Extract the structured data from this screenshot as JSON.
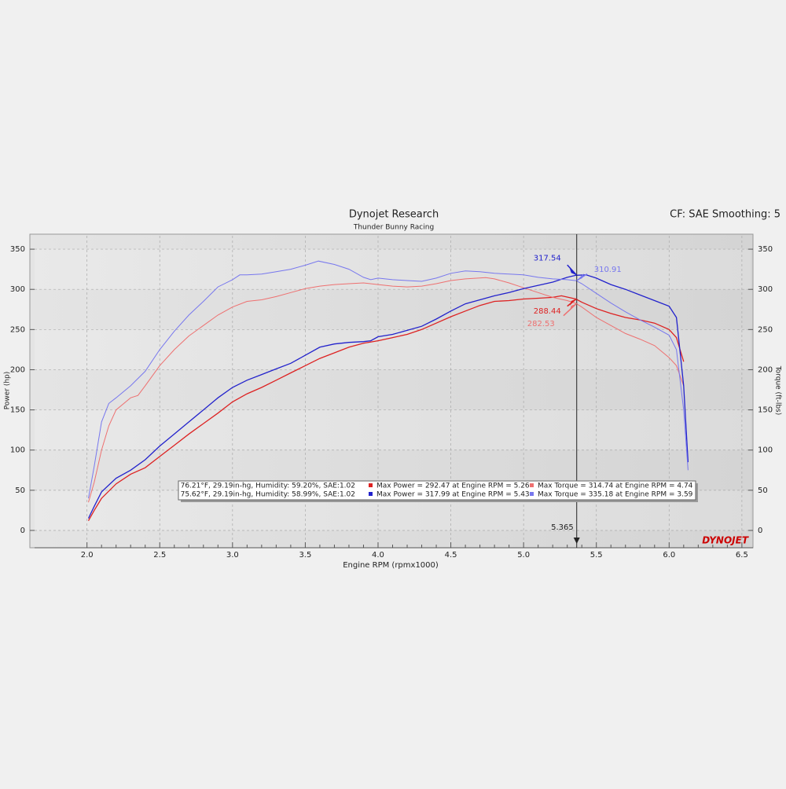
{
  "chart_data": {
    "type": "line",
    "title": "Dynojet Research",
    "subtitle": "Thunder Bunny Racing",
    "corner_text": "CF: SAE Smoothing: 5",
    "xlabel": "Engine RPM (rpmx1000)",
    "ylabel": "Power (hp)",
    "y2label": "Torque (ft-lbs)",
    "logo": "DYNOJET",
    "xlim": [
      1.64,
      6.56
    ],
    "xticks": [
      {
        "value": 2,
        "label": "2.0"
      },
      2.5,
      {
        "value": 3,
        "label": "3.0"
      },
      3.5,
      {
        "value": 4,
        "label": "4.0"
      },
      4.5,
      {
        "value": 5,
        "label": "5.0"
      },
      5.5,
      {
        "value": 6,
        "label": "6.0"
      },
      6.5
    ],
    "ylim": [
      -14.7,
      366.7
    ],
    "yticks": [
      0,
      50,
      100,
      150,
      200,
      250,
      300,
      350
    ],
    "y2lim": [
      -14.7,
      366.7
    ],
    "y2ticks": [
      0,
      50,
      100,
      150,
      200,
      250,
      300,
      350
    ],
    "grid": true,
    "cursor_x": 5.365,
    "cursor_readouts": [
      {
        "value": 317.54,
        "color": "#2222cc"
      },
      {
        "value": 310.91,
        "color": "#7777ee"
      },
      {
        "value": 288.44,
        "color": "#dd2222"
      },
      {
        "value": 282.53,
        "color": "#ee7070"
      }
    ],
    "runs": [
      {
        "conditions": "76.21°F, 29.19in-hg, Humidity: 59.20%, SAE:1.02"
      },
      {
        "conditions": "75.62°F, 29.19in-hg, Humidity: 58.99%, SAE:1.02"
      }
    ],
    "series": [
      {
        "name": "Max Power = 292.47 at Engine RPM = 5.26",
        "color": "#dd2222",
        "run": 0,
        "x": [
          2.01,
          2.05,
          2.1,
          2.2,
          2.3,
          2.4,
          2.5,
          2.6,
          2.7,
          2.8,
          2.9,
          3.0,
          3.1,
          3.2,
          3.3,
          3.4,
          3.5,
          3.6,
          3.7,
          3.8,
          3.9,
          4.0,
          4.1,
          4.2,
          4.3,
          4.4,
          4.5,
          4.6,
          4.7,
          4.8,
          4.9,
          5.0,
          5.1,
          5.2,
          5.26,
          5.36,
          5.4,
          5.5,
          5.6,
          5.7,
          5.8,
          5.9,
          6.0,
          6.05,
          6.1
        ],
        "values": [
          12,
          25,
          40,
          58,
          70,
          78,
          92,
          106,
          120,
          133,
          146,
          160,
          170,
          178,
          187,
          196,
          205,
          214,
          221,
          228,
          233,
          236,
          240,
          244,
          250,
          258,
          266,
          273,
          280,
          285,
          286,
          288,
          289,
          290,
          292,
          288,
          284,
          276,
          270,
          265,
          262,
          258,
          250,
          240,
          210
        ]
      },
      {
        "name": "Max Torque = 314.74 at Engine RPM = 4.74",
        "color": "#ee7070",
        "run": 0,
        "axis": "y2",
        "x": [
          2.01,
          2.05,
          2.1,
          2.15,
          2.2,
          2.3,
          2.35,
          2.4,
          2.5,
          2.6,
          2.7,
          2.8,
          2.9,
          3.0,
          3.1,
          3.2,
          3.3,
          3.4,
          3.5,
          3.6,
          3.7,
          3.8,
          3.9,
          4.0,
          4.1,
          4.2,
          4.3,
          4.4,
          4.5,
          4.6,
          4.74,
          4.8,
          4.9,
          5.0,
          5.1,
          5.2,
          5.3,
          5.36,
          5.4,
          5.5,
          5.6,
          5.7,
          5.8,
          5.9,
          6.0,
          6.05,
          6.1
        ],
        "values": [
          35,
          60,
          100,
          130,
          150,
          165,
          168,
          180,
          205,
          225,
          242,
          255,
          268,
          278,
          285,
          287,
          291,
          296,
          301,
          304,
          306,
          307,
          308,
          306,
          304,
          303,
          304,
          307,
          311,
          313,
          314.7,
          313,
          308,
          302,
          296,
          290,
          286,
          282.5,
          278,
          265,
          255,
          245,
          238,
          230,
          215,
          205,
          180
        ]
      },
      {
        "name": "Max Power = 317.99 at Engine RPM = 5.43",
        "color": "#2222cc",
        "run": 1,
        "x": [
          2.01,
          2.05,
          2.1,
          2.2,
          2.3,
          2.4,
          2.5,
          2.6,
          2.7,
          2.8,
          2.9,
          3.0,
          3.1,
          3.2,
          3.3,
          3.4,
          3.5,
          3.6,
          3.7,
          3.8,
          3.9,
          3.95,
          4.0,
          4.1,
          4.2,
          4.3,
          4.4,
          4.5,
          4.6,
          4.7,
          4.8,
          4.9,
          5.0,
          5.1,
          5.2,
          5.3,
          5.36,
          5.43,
          5.5,
          5.6,
          5.7,
          5.8,
          5.9,
          6.0,
          6.05,
          6.1,
          6.13
        ],
        "values": [
          15,
          30,
          48,
          65,
          75,
          88,
          105,
          120,
          135,
          150,
          165,
          178,
          187,
          194,
          201,
          208,
          218,
          228,
          232,
          234,
          235,
          236,
          241,
          244,
          249,
          254,
          263,
          273,
          282,
          287,
          292,
          296,
          301,
          305,
          309,
          315,
          317.5,
          318,
          314,
          306,
          300,
          293,
          286,
          279,
          265,
          180,
          85
        ]
      },
      {
        "name": "Max Torque = 335.18 at Engine RPM = 3.59",
        "color": "#7777ee",
        "run": 1,
        "axis": "y2",
        "x": [
          2.01,
          2.05,
          2.1,
          2.15,
          2.2,
          2.3,
          2.4,
          2.5,
          2.6,
          2.7,
          2.8,
          2.9,
          3.0,
          3.05,
          3.1,
          3.2,
          3.3,
          3.4,
          3.5,
          3.59,
          3.7,
          3.8,
          3.9,
          3.95,
          4.0,
          4.1,
          4.2,
          4.3,
          4.4,
          4.5,
          4.6,
          4.7,
          4.8,
          4.9,
          5.0,
          5.1,
          5.2,
          5.3,
          5.36,
          5.4,
          5.5,
          5.6,
          5.7,
          5.8,
          5.9,
          6.0,
          6.05,
          6.1,
          6.13
        ],
        "values": [
          40,
          80,
          135,
          158,
          165,
          180,
          198,
          225,
          248,
          268,
          285,
          303,
          312,
          318,
          318,
          319,
          322,
          325,
          330,
          335.2,
          331,
          325,
          315,
          312,
          314,
          312,
          311,
          310,
          314,
          320,
          323,
          322,
          320,
          319,
          318,
          315,
          313,
          312,
          310.9,
          307,
          295,
          283,
          272,
          262,
          253,
          243,
          225,
          150,
          75
        ]
      }
    ]
  }
}
